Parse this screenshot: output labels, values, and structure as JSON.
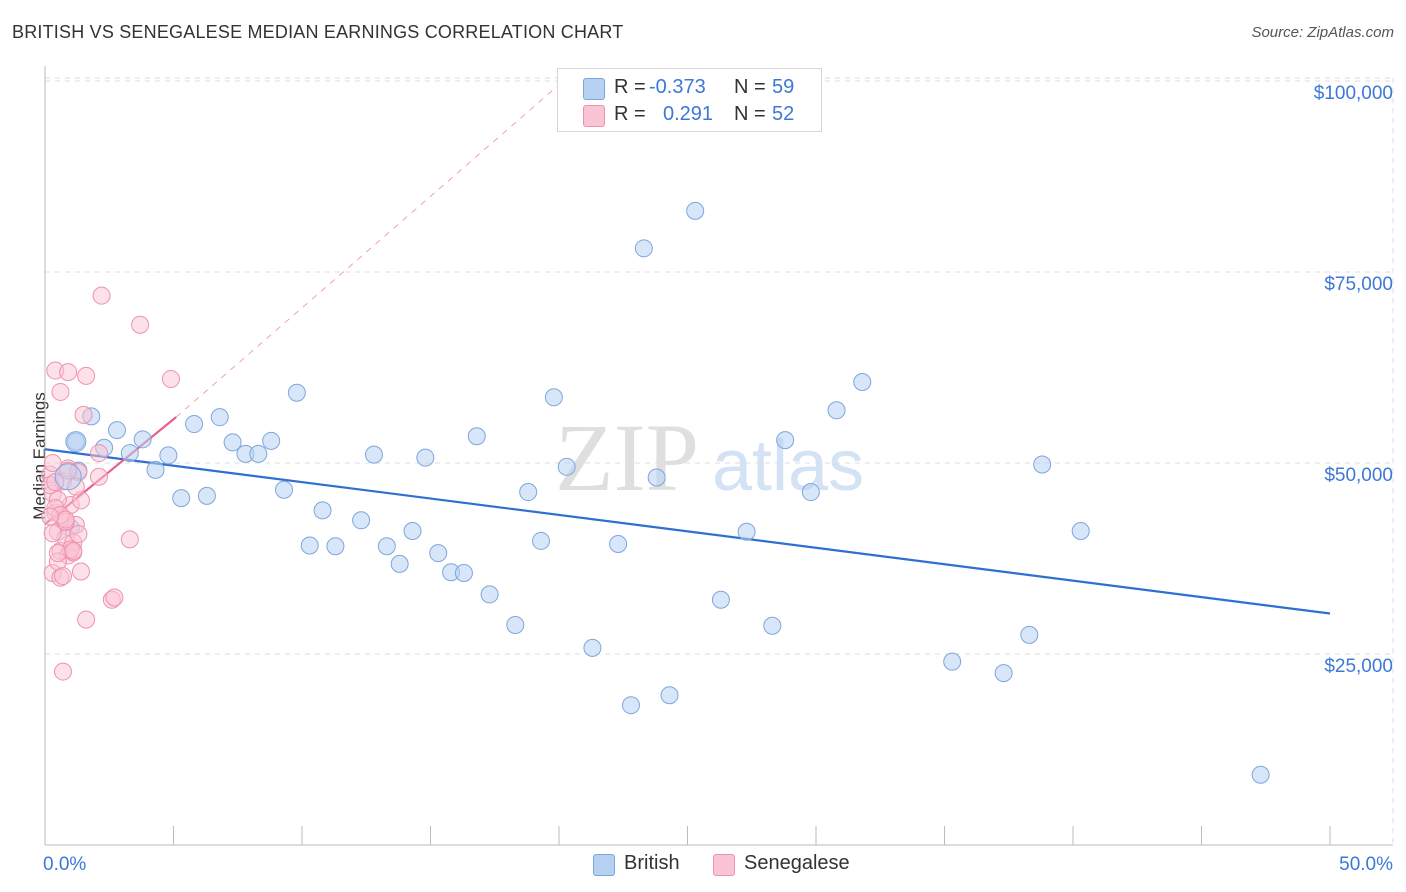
{
  "title": "BRITISH VS SENEGALESE MEDIAN EARNINGS CORRELATION CHART",
  "source": "Source: ZipAtlas.com",
  "watermark": {
    "zip": "ZIP",
    "atlas": "atlas"
  },
  "legend": {
    "british": {
      "r_label": "R =",
      "r_value": "-0.373",
      "n_label": "N =",
      "n_value": "59"
    },
    "senegalese": {
      "r_label": "R =",
      "r_value": "0.291",
      "n_label": "N =",
      "n_value": "52"
    }
  },
  "bottom_legend": {
    "british": "British",
    "senegalese": "Senegalese"
  },
  "colors": {
    "british_fill": "#b7d1f3",
    "british_stroke": "#7fa6db",
    "british_line": "#2f6fd0",
    "senegalese_fill": "#f9c4d4",
    "senegalese_stroke": "#ee92b0",
    "senegalese_line": "#e8608a",
    "axis_text": "#3c78d8",
    "grid": "#dddddd"
  },
  "chart_data": {
    "type": "scatter",
    "title": "BRITISH VS SENEGALESE MEDIAN EARNINGS CORRELATION CHART",
    "xlabel": "",
    "ylabel": "Median Earnings",
    "xlim": [
      0,
      50
    ],
    "ylim": [
      0,
      105000
    ],
    "x_tick_labels": [
      "0.0%",
      "50.0%"
    ],
    "y_ticks": [
      25000,
      50000,
      75000,
      100000
    ],
    "y_tick_labels": [
      "$25,000",
      "$50,000",
      "$75,000",
      "$100,000"
    ],
    "grid": true,
    "series": [
      {
        "name": "British",
        "r": -0.373,
        "n": 59,
        "trend": {
          "x": [
            0,
            50
          ],
          "y": [
            51800,
            30300
          ]
        },
        "points": [
          [
            1.2,
            52800
          ],
          [
            1.3,
            49000
          ],
          [
            1.8,
            56100
          ],
          [
            2.3,
            52000
          ],
          [
            2.8,
            54300
          ],
          [
            3.3,
            51300
          ],
          [
            3.8,
            53100
          ],
          [
            4.3,
            49100
          ],
          [
            4.8,
            51000
          ],
          [
            5.3,
            45400
          ],
          [
            5.8,
            55100
          ],
          [
            6.3,
            45700
          ],
          [
            6.8,
            56000
          ],
          [
            7.3,
            52700
          ],
          [
            7.8,
            51200
          ],
          [
            8.3,
            51200
          ],
          [
            8.8,
            52900
          ],
          [
            9.3,
            46500
          ],
          [
            9.8,
            59200
          ],
          [
            10.3,
            39200
          ],
          [
            10.8,
            43800
          ],
          [
            11.3,
            39100
          ],
          [
            12.3,
            42500
          ],
          [
            12.8,
            51100
          ],
          [
            13.3,
            39100
          ],
          [
            13.8,
            36800
          ],
          [
            14.3,
            41100
          ],
          [
            14.8,
            50700
          ],
          [
            15.3,
            38200
          ],
          [
            15.8,
            35700
          ],
          [
            16.3,
            35600
          ],
          [
            16.8,
            53500
          ],
          [
            17.3,
            32800
          ],
          [
            18.3,
            28800
          ],
          [
            18.8,
            46200
          ],
          [
            19.3,
            39800
          ],
          [
            19.8,
            58600
          ],
          [
            20.3,
            49500
          ],
          [
            21.3,
            25800
          ],
          [
            22.3,
            39400
          ],
          [
            22.8,
            18300
          ],
          [
            23.3,
            78100
          ],
          [
            23.8,
            48100
          ],
          [
            24.3,
            19600
          ],
          [
            25.3,
            83000
          ],
          [
            26.3,
            32100
          ],
          [
            27.3,
            41000
          ],
          [
            28.3,
            28700
          ],
          [
            28.8,
            53000
          ],
          [
            29.8,
            46200
          ],
          [
            30.8,
            56900
          ],
          [
            31.8,
            60600
          ],
          [
            35.3,
            24000
          ],
          [
            37.3,
            22500
          ],
          [
            38.3,
            27500
          ],
          [
            38.8,
            49800
          ],
          [
            40.3,
            41100
          ],
          [
            47.3,
            9200
          ],
          [
            1.0,
            41500
          ]
        ]
      },
      {
        "name": "Senegalese",
        "r": 0.291,
        "n": 52,
        "trend": {
          "x": [
            0,
            5.1
          ],
          "y": [
            42000,
            56000
          ]
        },
        "trend_extension": {
          "x": [
            5.1,
            20.0
          ],
          "y": [
            56000,
            99500
          ]
        },
        "points": [
          [
            0.2,
            48500
          ],
          [
            0.3,
            46000
          ],
          [
            0.4,
            43500
          ],
          [
            0.5,
            41000
          ],
          [
            0.6,
            38500
          ],
          [
            0.7,
            42800
          ],
          [
            0.8,
            40200
          ],
          [
            0.9,
            37900
          ],
          [
            1.0,
            44500
          ],
          [
            1.1,
            39600
          ],
          [
            0.3,
            35600
          ],
          [
            0.5,
            45200
          ],
          [
            0.7,
            47600
          ],
          [
            0.9,
            49300
          ],
          [
            1.2,
            41900
          ],
          [
            0.4,
            62100
          ],
          [
            0.6,
            59300
          ],
          [
            0.9,
            61900
          ],
          [
            1.6,
            61400
          ],
          [
            1.5,
            56300
          ],
          [
            2.2,
            71900
          ],
          [
            3.7,
            68100
          ],
          [
            4.9,
            61000
          ],
          [
            2.1,
            51300
          ],
          [
            1.3,
            48800
          ],
          [
            2.1,
            48200
          ],
          [
            1.4,
            45100
          ],
          [
            0.8,
            42300
          ],
          [
            1.1,
            38300
          ],
          [
            0.5,
            37100
          ],
          [
            0.6,
            35000
          ],
          [
            1.4,
            35800
          ],
          [
            1.3,
            40700
          ],
          [
            3.3,
            40000
          ],
          [
            2.6,
            32100
          ],
          [
            2.7,
            32400
          ],
          [
            1.6,
            29500
          ],
          [
            0.7,
            22700
          ],
          [
            0.3,
            50000
          ],
          [
            0.2,
            47100
          ],
          [
            0.4,
            44100
          ],
          [
            0.6,
            43200
          ],
          [
            0.8,
            42600
          ],
          [
            1.0,
            38700
          ],
          [
            0.3,
            40800
          ],
          [
            0.5,
            38200
          ],
          [
            0.2,
            43000
          ],
          [
            0.7,
            35200
          ],
          [
            1.2,
            46900
          ],
          [
            0.4,
            47500
          ],
          [
            0.9,
            49000
          ],
          [
            1.1,
            38500
          ]
        ]
      }
    ]
  }
}
